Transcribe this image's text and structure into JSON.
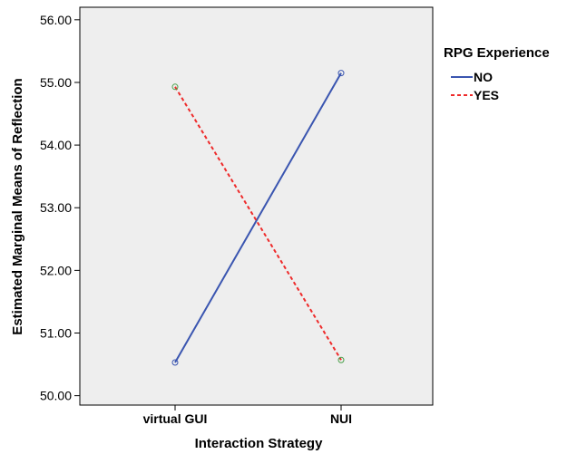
{
  "chart_data": {
    "type": "line",
    "categories": [
      "virtual GUI",
      "NUI"
    ],
    "xlabel": "Interaction Strategy",
    "ylabel": "Estimated Marginal Means of Reflection",
    "ylim": [
      49.85,
      56.2
    ],
    "yticks": [
      "50.00",
      "51.00",
      "52.00",
      "53.00",
      "54.00",
      "55.00",
      "56.00"
    ],
    "yticks_values": [
      50,
      51,
      52,
      53,
      54,
      55,
      56
    ],
    "legend_title": "RPG Experience",
    "legend_position": "top-right outside",
    "grid": false,
    "background": "#eeeeee",
    "series": [
      {
        "name": "NO",
        "values": [
          50.53,
          55.15
        ],
        "color": "#3a55b0",
        "marker_color": "#3a55b0",
        "dash": "solid"
      },
      {
        "name": "YES",
        "values": [
          54.93,
          50.57
        ],
        "color": "#ee2a2a",
        "marker_color": "#4aa04a",
        "dash": "dashed"
      }
    ]
  }
}
